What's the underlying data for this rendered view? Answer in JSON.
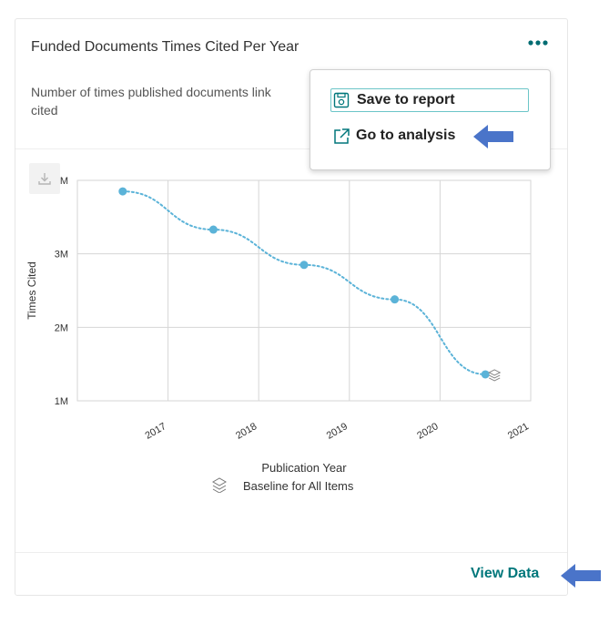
{
  "card": {
    "title": "Funded Documents Times Cited Per Year",
    "subtitle": "Number of times published documents link",
    "subtitle_line2": "cited"
  },
  "menu": {
    "items": [
      {
        "label": "Save to report",
        "icon": "save-icon"
      },
      {
        "label": "Go to analysis",
        "icon": "external-link-icon"
      }
    ]
  },
  "footer": {
    "view_data_label": "View Data"
  },
  "colors": {
    "accent": "#00777b",
    "series": "#5bb3d8",
    "pointer_arrow": "#4a74c9"
  },
  "chart_data": {
    "type": "line",
    "title": "",
    "xlabel": "Publication Year",
    "ylabel": "Times Cited",
    "categories": [
      "2017",
      "2018",
      "2019",
      "2020",
      "2021"
    ],
    "y_ticks": [
      1000000,
      2000000,
      3000000,
      4000000
    ],
    "y_tick_labels": [
      "1M",
      "2M",
      "3M",
      "4M"
    ],
    "ylim": [
      1000000,
      4000000
    ],
    "series": [
      {
        "name": "",
        "values": [
          3850000,
          3330000,
          2850000,
          2380000,
          1360000
        ]
      }
    ],
    "legend": {
      "label": "Baseline for All Items",
      "icon": "layers-icon",
      "position": "bottom"
    },
    "grid": true
  }
}
